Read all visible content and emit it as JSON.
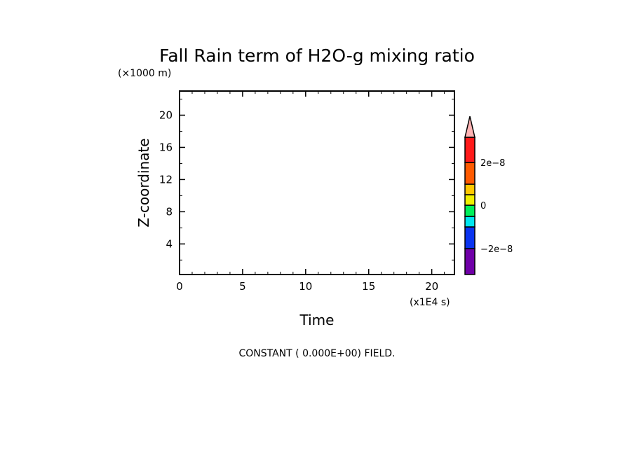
{
  "chart_data": {
    "type": "heatmap",
    "title": "Fall Rain term of H2O-g mixing ratio",
    "xlabel": "Time",
    "ylabel": "Z-coordinate",
    "x_units": "(x1E4 s)",
    "y_units": "(×1000 m)",
    "xlim": [
      0,
      21.8
    ],
    "ylim": [
      0.2,
      23
    ],
    "x_ticks": [
      0,
      5,
      10,
      15,
      20
    ],
    "x_tick_labels": [
      "0",
      "5",
      "10",
      "15",
      "20"
    ],
    "y_ticks": [
      4,
      8,
      12,
      16,
      20
    ],
    "y_tick_labels": [
      "4",
      "8",
      "12",
      "16",
      "20"
    ],
    "field_value": 0,
    "annotation": "CONSTANT ( 0.000E+00) FIELD.",
    "colorbar": {
      "colors": [
        "#7000a8",
        "#0a34f0",
        "#00e6f0",
        "#00f05a",
        "#f0f000",
        "#ffc800",
        "#ff5a00",
        "#ff1a1a",
        "#ffb4b4"
      ],
      "label_values": [
        -2e-08,
        0,
        2e-08
      ],
      "labels": [
        "−2e−8",
        "0",
        "2e−8"
      ]
    }
  }
}
